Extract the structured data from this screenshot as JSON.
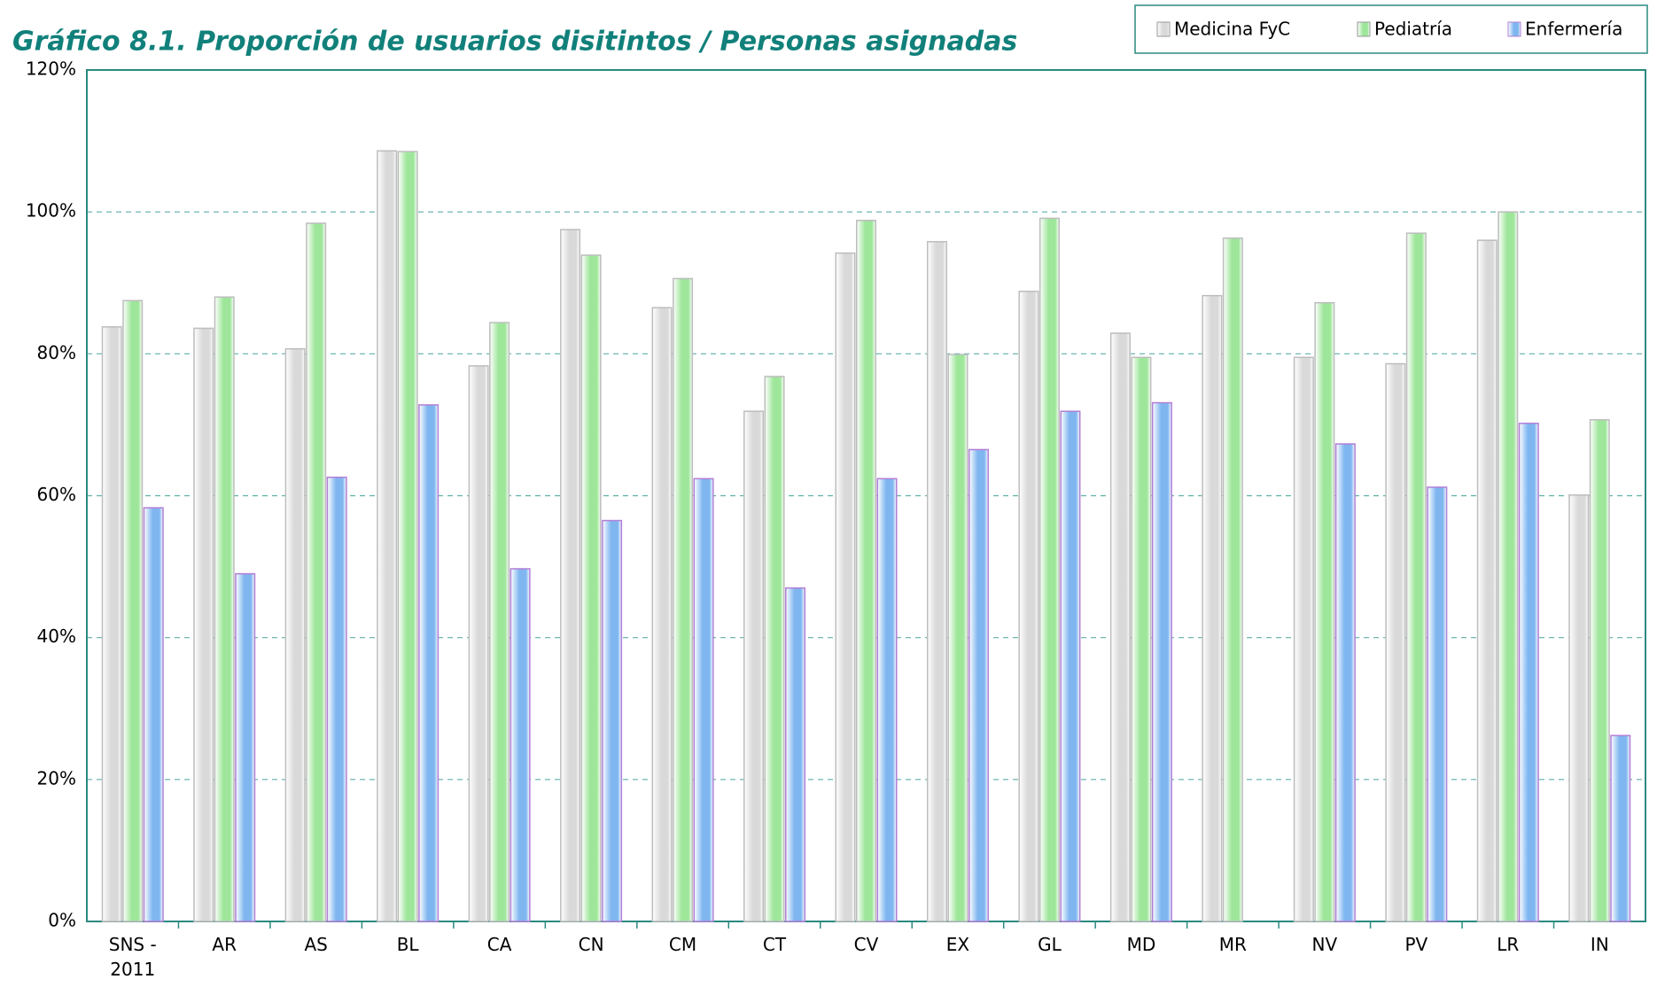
{
  "chart_data": {
    "type": "bar",
    "title": "Gráfico 8.1. Proporción de usuarios disitintos / Personas asignadas",
    "categories": [
      "SNS - 2011",
      "AR",
      "AS",
      "BL",
      "CA",
      "CN",
      "CM",
      "CT",
      "CV",
      "EX",
      "GL",
      "MD",
      "MR",
      "NV",
      "PV",
      "LR",
      "IN"
    ],
    "series": [
      {
        "name": "Medicina FyC",
        "color": "#d9d9d9",
        "values": [
          83.8,
          83.6,
          80.7,
          108.6,
          78.3,
          97.5,
          86.5,
          71.9,
          94.2,
          95.8,
          88.8,
          82.9,
          88.2,
          79.5,
          78.6,
          96,
          60.1
        ]
      },
      {
        "name": "Pediatría",
        "color": "#9ee69a",
        "values": [
          87.5,
          88,
          98.4,
          108.5,
          84.4,
          93.9,
          90.6,
          76.8,
          98.8,
          79.9,
          99.1,
          79.5,
          96.3,
          87.2,
          97,
          100,
          70.7
        ]
      },
      {
        "name": "Enfermería",
        "color": "#7fb6f0",
        "values": [
          58.3,
          49,
          62.6,
          72.8,
          49.7,
          56.5,
          62.4,
          47,
          62.4,
          66.5,
          71.9,
          73.1,
          null,
          67.3,
          61.2,
          70.2,
          26.2
        ]
      }
    ],
    "ylim": [
      0,
      120
    ],
    "yticks": [
      {
        "value": 0,
        "label": "0%"
      },
      {
        "value": 20,
        "label": "20%"
      },
      {
        "value": 40,
        "label": "40%"
      },
      {
        "value": 60,
        "label": "60%"
      },
      {
        "value": 80,
        "label": "80%"
      },
      {
        "value": 100,
        "label": "100%"
      },
      {
        "value": 120,
        "label": "120%"
      }
    ],
    "grid": true,
    "legend": "top-right"
  }
}
